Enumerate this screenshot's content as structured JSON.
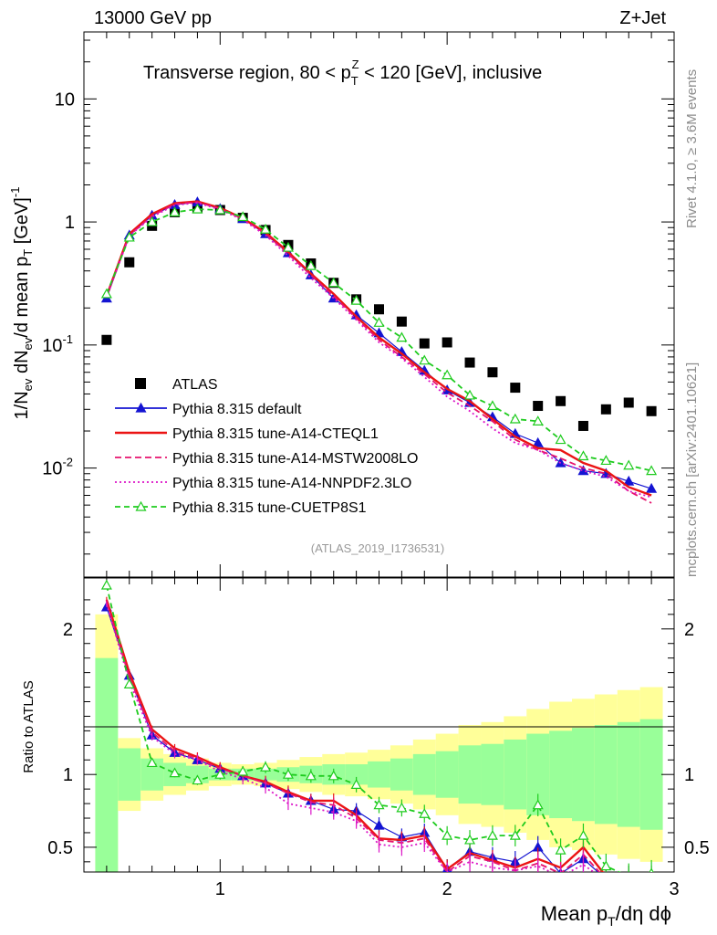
{
  "header": {
    "left": "13000 GeV pp",
    "right": "Z+Jet",
    "subtitle_text": "Transverse region, 80 < p",
    "subtitle_sup": "Z",
    "subtitle_sub": "T",
    "subtitle_tail": " < 120 [GeV], inclusive",
    "analysis_tag": "(ATLAS_2019_I1736531)",
    "side_rivet": "Rivet 4.1.0, ≥ 3.6M events",
    "side_mcplots": "mcplots.cern.ch [arXiv:2401.10621]"
  },
  "axes": {
    "ylabel_main_text": "1/N",
    "ylabel_main_sub": "ev",
    "ylabel_main_mid": " dN",
    "ylabel_main_sub2": "ev",
    "ylabel_main_tail": "/d mean p",
    "ylabel_main_sub3": "T",
    "ylabel_main_unit": " [GeV]",
    "ylabel_main_sup": "-1",
    "ylabel_ratio": "Ratio to ATLAS",
    "xlabel_text": "Mean p",
    "xlabel_sub": "T",
    "xlabel_tail": "/dη dϕ",
    "x_ticks": [
      "1",
      "2",
      "3"
    ],
    "y_ticks_main": [
      {
        "base": "10",
        "exp": "-2"
      },
      {
        "base": "10",
        "exp": "-1"
      },
      {
        "base": "1",
        "exp": ""
      },
      {
        "base": "10",
        "exp": ""
      }
    ],
    "y_ticks_ratio": [
      "0.5",
      "1",
      "2"
    ]
  },
  "legend": [
    "ATLAS",
    "Pythia 8.315 default",
    "Pythia 8.315 tune-A14-CTEQL1",
    "Pythia 8.315 tune-A14-MSTW2008LO",
    "Pythia 8.315 tune-A14-NNPDF2.3LO",
    "Pythia 8.315 tune-CUETP8S1"
  ],
  "chart_data": {
    "type": "line",
    "title": "Transverse region, 80 < pT^Z < 120 [GeV], inclusive",
    "xlabel": "Mean pT/dη dϕ",
    "ylabel": "1/Nev dNev/d mean pT [GeV]^-1",
    "yscale": "log",
    "xlim": [
      0.4,
      3.0
    ],
    "ylim": [
      0.0013,
      35
    ],
    "ratio_ylim": [
      0.33,
      2.35
    ],
    "x": [
      0.5,
      0.6,
      0.7,
      0.8,
      0.9,
      1.0,
      1.1,
      1.2,
      1.3,
      1.4,
      1.5,
      1.6,
      1.7,
      1.8,
      1.9,
      2.0,
      2.1,
      2.2,
      2.3,
      2.4,
      2.5,
      2.6,
      2.7,
      2.8,
      2.9
    ],
    "colors": {
      "ATLAS": "#000000",
      "default": "#1414d2",
      "CTEQL1": "#eb1414",
      "MSTW2008LO": "#e6146e",
      "NNPDF23LO": "#dc14c8",
      "CUETP8S1": "#1ecb1e",
      "band_inner": "#99ff99",
      "band_outer": "#ffff99"
    },
    "series": [
      {
        "name": "ATLAS",
        "key": "ATLAS",
        "style": "square",
        "values": [
          0.11,
          0.47,
          0.93,
          1.2,
          1.3,
          1.25,
          1.08,
          0.86,
          0.65,
          0.46,
          0.32,
          0.235,
          0.195,
          0.155,
          0.103,
          0.105,
          0.072,
          0.06,
          0.045,
          0.032,
          0.035,
          0.022,
          0.03,
          0.034,
          0.029
        ]
      },
      {
        "name": "Pythia 8.315 default",
        "key": "default",
        "style": "solid-triangle",
        "values": [
          0.24,
          0.78,
          1.13,
          1.38,
          1.45,
          1.28,
          1.06,
          0.8,
          0.56,
          0.37,
          0.24,
          0.175,
          0.125,
          0.088,
          0.062,
          0.043,
          0.034,
          0.026,
          0.019,
          0.016,
          0.011,
          0.0095,
          0.009,
          0.0078,
          0.0068
        ]
      },
      {
        "name": "Pythia 8.315 tune-A14-CTEQL1",
        "key": "CTEQL1",
        "style": "solid",
        "values": [
          0.25,
          0.8,
          1.16,
          1.42,
          1.47,
          1.3,
          1.07,
          0.82,
          0.57,
          0.38,
          0.26,
          0.17,
          0.115,
          0.085,
          0.06,
          0.044,
          0.035,
          0.025,
          0.018,
          0.0145,
          0.014,
          0.011,
          0.0095,
          0.007,
          0.006
        ]
      },
      {
        "name": "Pythia 8.315 tune-A14-MSTW2008LO",
        "key": "MSTW2008LO",
        "style": "dashed",
        "values": [
          0.25,
          0.78,
          1.12,
          1.4,
          1.45,
          1.28,
          1.06,
          0.8,
          0.55,
          0.37,
          0.25,
          0.165,
          0.11,
          0.08,
          0.058,
          0.041,
          0.032,
          0.024,
          0.017,
          0.014,
          0.012,
          0.01,
          0.009,
          0.0065,
          0.0052
        ]
      },
      {
        "name": "Pythia 8.315 tune-A14-NNPDF2.3LO",
        "key": "NNPDF23LO",
        "style": "dotted",
        "values": [
          0.245,
          0.77,
          1.1,
          1.37,
          1.43,
          1.26,
          1.04,
          0.78,
          0.53,
          0.35,
          0.24,
          0.16,
          0.105,
          0.078,
          0.055,
          0.038,
          0.029,
          0.021,
          0.016,
          0.014,
          0.011,
          0.0095,
          0.0085,
          0.0065,
          0.0058
        ]
      },
      {
        "name": "Pythia 8.315 tune-CUETP8S1",
        "key": "CUETP8S1",
        "style": "dashed-open-triangle",
        "values": [
          0.26,
          0.75,
          1.0,
          1.2,
          1.27,
          1.25,
          1.1,
          0.87,
          0.62,
          0.44,
          0.32,
          0.23,
          0.152,
          0.115,
          0.075,
          0.057,
          0.039,
          0.032,
          0.025,
          0.024,
          0.017,
          0.0125,
          0.0115,
          0.0105,
          0.0095
        ]
      }
    ],
    "ratio": {
      "default": [
        2.15,
        1.68,
        1.27,
        1.15,
        1.1,
        1.04,
        0.99,
        0.94,
        0.87,
        0.82,
        0.76,
        0.75,
        0.65,
        0.57,
        0.6,
        0.35,
        0.47,
        0.43,
        0.4,
        0.5,
        0.32,
        0.42,
        0.28,
        0.22,
        0.22
      ],
      "CTEQL1": [
        2.2,
        1.7,
        1.31,
        1.18,
        1.12,
        1.05,
        0.99,
        0.95,
        0.88,
        0.82,
        0.82,
        0.72,
        0.56,
        0.55,
        0.58,
        0.35,
        0.46,
        0.41,
        0.36,
        0.42,
        0.36,
        0.5,
        0.3,
        0.2,
        0.2
      ],
      "MSTW2008LO": [
        2.18,
        1.67,
        1.29,
        1.16,
        1.11,
        1.04,
        0.99,
        0.94,
        0.87,
        0.81,
        0.79,
        0.7,
        0.55,
        0.53,
        0.56,
        0.33,
        0.44,
        0.4,
        0.34,
        0.39,
        0.32,
        0.45,
        0.28,
        0.19,
        0.18
      ],
      "NNPDF23LO": [
        2.17,
        1.64,
        1.26,
        1.14,
        1.1,
        1.02,
        0.97,
        0.91,
        0.8,
        0.77,
        0.74,
        0.68,
        0.52,
        0.5,
        0.53,
        0.33,
        0.4,
        0.36,
        0.34,
        0.37,
        0.3,
        0.38,
        0.27,
        0.19,
        0.19
      ],
      "CUETP8S1": [
        2.3,
        1.62,
        1.08,
        1.01,
        0.96,
        1.0,
        1.02,
        1.05,
        1.0,
        0.99,
        0.99,
        0.93,
        0.79,
        0.77,
        0.73,
        0.58,
        0.55,
        0.58,
        0.58,
        0.79,
        0.48,
        0.58,
        0.37,
        0.3,
        0.32
      ]
    },
    "atlas_band": {
      "inner_low": [
        0.2,
        0.82,
        0.89,
        0.92,
        0.94,
        0.96,
        0.96,
        0.96,
        0.95,
        0.94,
        0.93,
        0.93,
        0.91,
        0.89,
        0.86,
        0.84,
        0.8,
        0.79,
        0.76,
        0.72,
        0.7,
        0.68,
        0.66,
        0.64,
        0.62
      ],
      "inner_high": [
        1.8,
        1.18,
        1.11,
        1.08,
        1.06,
        1.04,
        1.04,
        1.04,
        1.05,
        1.06,
        1.07,
        1.07,
        1.09,
        1.11,
        1.14,
        1.16,
        1.2,
        1.21,
        1.24,
        1.28,
        1.3,
        1.32,
        1.34,
        1.36,
        1.38
      ],
      "outer_low": [
        0.05,
        0.75,
        0.82,
        0.86,
        0.89,
        0.92,
        0.93,
        0.92,
        0.9,
        0.88,
        0.86,
        0.85,
        0.83,
        0.8,
        0.76,
        0.72,
        0.66,
        0.64,
        0.6,
        0.55,
        0.5,
        0.48,
        0.45,
        0.42,
        0.4
      ],
      "outer_high": [
        2.1,
        1.25,
        1.18,
        1.14,
        1.11,
        1.08,
        1.07,
        1.08,
        1.1,
        1.12,
        1.14,
        1.15,
        1.17,
        1.2,
        1.24,
        1.28,
        1.34,
        1.36,
        1.4,
        1.45,
        1.5,
        1.52,
        1.55,
        1.58,
        1.6
      ]
    }
  }
}
